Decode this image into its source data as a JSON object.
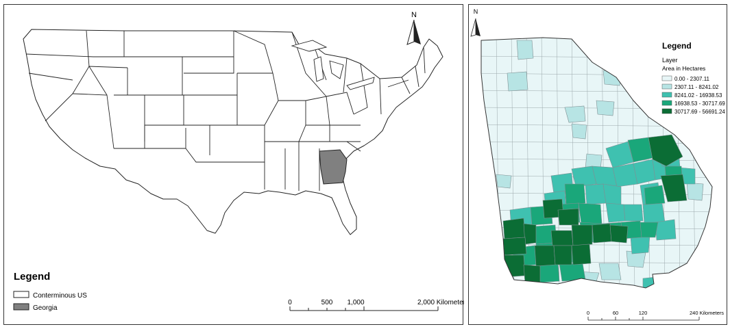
{
  "us_map": {
    "north_label": "N",
    "legend": {
      "title": "Legend",
      "items": [
        {
          "label": "Conterminous US",
          "color": "#ffffff"
        },
        {
          "label": "Georgia",
          "color": "#808080"
        }
      ]
    },
    "scale": {
      "ticks": [
        "0",
        "500",
        "1,000",
        "2,000 Kilometers"
      ]
    }
  },
  "ga_map": {
    "north_label": "N",
    "legend": {
      "title": "Legend",
      "layer": "Layer",
      "field": "Area in Hectares",
      "classes": [
        {
          "label": "0.00 - 2307.11",
          "color": "#e8f6f7"
        },
        {
          "label": "2307.11 - 8241.02",
          "color": "#b7e4e4"
        },
        {
          "label": "8241.02 - 16938.53",
          "color": "#3fc1b0"
        },
        {
          "label": "16938.53 - 30717.69",
          "color": "#1aa77a"
        },
        {
          "label": "30717.69 - 56691.24",
          "color": "#0b6d35"
        }
      ]
    },
    "scale": {
      "ticks": [
        "0",
        "60",
        "120",
        "240 Kilometers"
      ]
    }
  }
}
